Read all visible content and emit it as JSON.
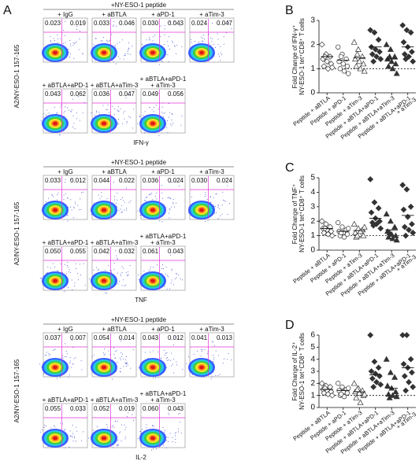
{
  "panel_a": {
    "letter": "A",
    "blocks": [
      {
        "header": "+NY-ESO-1 peptide",
        "y_label": "A2/NY-ESO-1 157-165",
        "x_label": "IFN-γ",
        "plots": [
          {
            "label": [
              "+ IgG"
            ],
            "q_left": "0.023",
            "q_right": "0.019"
          },
          {
            "label": [
              "+ aBTLA"
            ],
            "q_left": "0.033",
            "q_right": "0.046"
          },
          {
            "label": [
              "+ aPD-1"
            ],
            "q_left": "0.030",
            "q_right": "0.043"
          },
          {
            "label": [
              "+ aTim-3"
            ],
            "q_left": "0.024",
            "q_right": "0.047"
          },
          {
            "label": [
              "+ aBTLA+aPD-1"
            ],
            "q_left": "0.043",
            "q_right": "0.062"
          },
          {
            "label": [
              "+ aBTLA+aTim-3"
            ],
            "q_left": "0.036",
            "q_right": "0.047"
          },
          {
            "label": [
              "+ aBTLA+aPD-1",
              "+ aTim-3"
            ],
            "q_left": "0.049",
            "q_right": "0.056"
          }
        ]
      },
      {
        "header": "+NY-ESO-1 peptide",
        "y_label": "A2/NY-ESO-1 157-165",
        "x_label": "TNF",
        "plots": [
          {
            "label": [
              "+ IgG"
            ],
            "q_left": "0.033",
            "q_right": "0.012"
          },
          {
            "label": [
              "+ aBTLA"
            ],
            "q_left": "0.044",
            "q_right": "0.022"
          },
          {
            "label": [
              "+ aPD-1"
            ],
            "q_left": "0.036",
            "q_right": "0.024"
          },
          {
            "label": [
              "+ aTim-3"
            ],
            "q_left": "0.030",
            "q_right": "0.024"
          },
          {
            "label": [
              "+ aBTLA+aPD-1"
            ],
            "q_left": "0.050",
            "q_right": "0.055"
          },
          {
            "label": [
              "+ aBTLA+aTim-3"
            ],
            "q_left": "0.042",
            "q_right": "0.032"
          },
          {
            "label": [
              "+ aBTLA+aPD-1",
              "+ aTim-3"
            ],
            "q_left": "0.061",
            "q_right": "0.043"
          }
        ]
      },
      {
        "header": "+NY-ESO-1 peptide",
        "y_label": "A2/NY-ESO-1 157-165",
        "x_label": "IL-2",
        "plots": [
          {
            "label": [
              "+ IgG"
            ],
            "q_left": "0.037",
            "q_right": "0.007"
          },
          {
            "label": [
              "+ aBTLA"
            ],
            "q_left": "0.054",
            "q_right": "0.014"
          },
          {
            "label": [
              "+ aPD-1"
            ],
            "q_left": "0.043",
            "q_right": "0.012"
          },
          {
            "label": [
              "+ aTim-3"
            ],
            "q_left": "0.041",
            "q_right": "0.013"
          },
          {
            "label": [
              "+ aBTLA+aPD-1"
            ],
            "q_left": "0.055",
            "q_right": "0.033"
          },
          {
            "label": [
              "+ aBTLA+aTim-3"
            ],
            "q_left": "0.052",
            "q_right": "0.019"
          },
          {
            "label": [
              "+ aBTLA+aPD-1",
              "+ aTim-3"
            ],
            "q_left": "0.060",
            "q_right": "0.043"
          }
        ]
      }
    ]
  },
  "chart_data": [
    {
      "type": "dot",
      "letter": "B",
      "y_label": [
        "Fold Change of IFN-γ⁺",
        "NY-ESO-1 tet⁺CD8⁺ T cells"
      ],
      "ylim": [
        0,
        3
      ],
      "yticks": [
        0,
        1,
        2,
        3
      ],
      "reference_line": 1,
      "groups": [
        {
          "label": [
            "Peptide + aBTLA"
          ],
          "marker": "diamond",
          "filled": false,
          "values": [
            2.0,
            1.6,
            1.5,
            1.4,
            1.3,
            1.2,
            1.1,
            1.0,
            1.05,
            1.5
          ],
          "mean": 1.5
        },
        {
          "label": [
            "Peptide + aPD-1"
          ],
          "marker": "circle",
          "filled": false,
          "values": [
            1.9,
            1.6,
            1.4,
            1.3,
            1.2,
            1.1,
            1.0,
            0.9,
            0.8,
            1.5
          ],
          "mean": 1.35
        },
        {
          "label": [
            "Peptide + aTim-3"
          ],
          "marker": "triangle",
          "filled": false,
          "values": [
            2.1,
            1.8,
            1.5,
            1.4,
            1.3,
            1.2,
            1.1,
            1.0,
            0.9,
            1.6
          ],
          "mean": 1.45
        },
        {
          "label": [
            "Peptide + aBTLA+aPD-1"
          ],
          "marker": "diamond",
          "filled": true,
          "values": [
            2.6,
            2.5,
            2.2,
            1.9,
            1.8,
            1.7,
            1.6,
            1.5,
            1.4,
            1.3
          ],
          "mean": 1.9
        },
        {
          "label": [
            "Peptide + aBTLA+aTim-3"
          ],
          "marker": "triangle",
          "filled": true,
          "values": [
            2.0,
            1.8,
            1.5,
            1.4,
            1.3,
            1.2,
            1.1,
            1.0,
            0.8,
            1.5
          ],
          "mean": 1.4
        },
        {
          "label": [
            "Peptide + aBTLA+aPD-1",
            "+ aTim-3"
          ],
          "marker": "diamond",
          "filled": true,
          "values": [
            2.8,
            2.6,
            2.5,
            2.1,
            1.9,
            1.7,
            1.6,
            1.5,
            1.3,
            1.4
          ],
          "mean": 1.9
        }
      ]
    },
    {
      "type": "dot",
      "letter": "C",
      "y_label": [
        "Fold Change of TNF⁺",
        "NY-ESO-1 tet⁺CD8⁺ T cells"
      ],
      "ylim": [
        0,
        5
      ],
      "yticks": [
        0,
        1,
        2,
        3,
        4,
        5
      ],
      "reference_line": 1,
      "groups": [
        {
          "label": [
            "Peptide + aBTLA"
          ],
          "marker": "diamond",
          "filled": false,
          "values": [
            2.0,
            1.8,
            1.6,
            1.5,
            1.4,
            1.3,
            1.2,
            1.1,
            1.0,
            1.5
          ],
          "mean": 1.5
        },
        {
          "label": [
            "Peptide + aPD-1"
          ],
          "marker": "circle",
          "filled": false,
          "values": [
            1.9,
            1.6,
            1.4,
            1.3,
            1.2,
            1.1,
            1.0,
            0.9,
            1.5,
            1.2
          ],
          "mean": 1.3
        },
        {
          "label": [
            "Peptide + aTim-3"
          ],
          "marker": "triangle",
          "filled": false,
          "values": [
            1.8,
            1.5,
            1.4,
            1.2,
            1.1,
            1.0,
            0.9,
            1.3,
            1.6,
            1.0
          ],
          "mean": 1.35
        },
        {
          "label": [
            "Peptide + aBTLA+aPD-1"
          ],
          "marker": "diamond",
          "filled": true,
          "values": [
            4.9,
            3.3,
            2.9,
            2.6,
            2.2,
            2.0,
            1.9,
            1.8,
            1.5,
            1.7
          ],
          "mean": 2.2
        },
        {
          "label": [
            "Peptide + aBTLA+aTim-3"
          ],
          "marker": "triangle",
          "filled": true,
          "values": [
            2.5,
            2.0,
            1.6,
            1.3,
            1.1,
            1.0,
            0.9,
            0.8,
            0.7,
            1.2
          ],
          "mean": 1.4
        },
        {
          "label": [
            "Peptide + aBTLA+aPD-1",
            "+ aTim-3"
          ],
          "marker": "diamond",
          "filled": true,
          "values": [
            4.5,
            4.2,
            3.0,
            2.8,
            2.3,
            1.8,
            1.6,
            1.4,
            1.2,
            1.0
          ],
          "mean": 2.4
        }
      ]
    },
    {
      "type": "dot",
      "letter": "D",
      "y_label": [
        "Fold Change of IL-2⁺",
        "NY-ESO-1 tet⁺CD8⁺ T cells"
      ],
      "ylim": [
        0,
        6
      ],
      "yticks": [
        0,
        1,
        2,
        3,
        4,
        5,
        6
      ],
      "reference_line": 1,
      "groups": [
        {
          "label": [
            "Peptide + aBTLA"
          ],
          "marker": "diamond",
          "filled": false,
          "values": [
            2.0,
            1.8,
            1.7,
            1.5,
            1.4,
            1.3,
            1.2,
            1.1,
            1.0,
            1.6
          ],
          "mean": 1.5
        },
        {
          "label": [
            "Peptide + aPD-1"
          ],
          "marker": "circle",
          "filled": false,
          "values": [
            2.0,
            1.7,
            1.5,
            1.4,
            1.3,
            1.2,
            1.0,
            0.9,
            1.6,
            1.1
          ],
          "mean": 1.4
        },
        {
          "label": [
            "Peptide + aTim-3"
          ],
          "marker": "triangle",
          "filled": false,
          "values": [
            2.0,
            1.6,
            1.4,
            1.3,
            1.2,
            1.0,
            0.8,
            0.4,
            1.1,
            1.5
          ],
          "mean": 1.3
        },
        {
          "label": [
            "Peptide + aBTLA+aPD-1"
          ],
          "marker": "diamond",
          "filled": true,
          "values": [
            6.0,
            3.8,
            3.3,
            3.0,
            2.8,
            2.6,
            2.4,
            2.1,
            1.9,
            1.7
          ],
          "mean": 2.7
        },
        {
          "label": [
            "Peptide + aBTLA+aTim-3"
          ],
          "marker": "triangle",
          "filled": true,
          "values": [
            4.0,
            2.9,
            2.5,
            1.8,
            1.6,
            1.3,
            1.1,
            1.0,
            0.9,
            0.8
          ],
          "mean": 1.6
        },
        {
          "label": [
            "Peptide + aBTLA+aPD-1",
            "+ aTim-3"
          ],
          "marker": "diamond",
          "filled": true,
          "values": [
            6.0,
            6.0,
            4.0,
            3.6,
            3.3,
            2.9,
            2.6,
            2.1,
            1.7,
            1.4
          ],
          "mean": 3.3
        }
      ]
    }
  ]
}
